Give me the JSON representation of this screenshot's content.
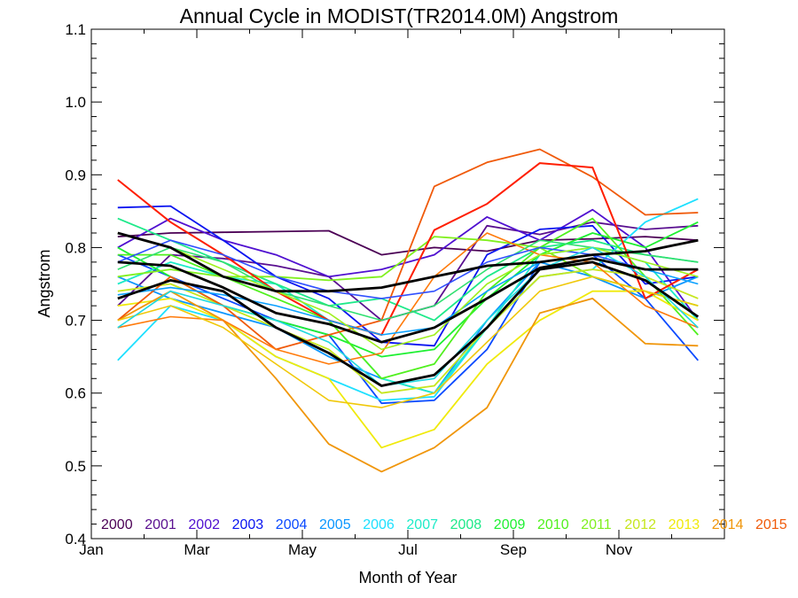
{
  "chart_data": {
    "type": "line",
    "title": "Annual Cycle in MODIST(TR2014.0M) Angstrom",
    "xlabel": "Month of Year",
    "ylabel": "Angstrom",
    "xlim": [
      1,
      13
    ],
    "ylim": [
      0.4,
      1.1
    ],
    "x_ticks": [
      {
        "value": 1,
        "label": "Jan"
      },
      {
        "value": 3,
        "label": "Mar"
      },
      {
        "value": 5,
        "label": "May"
      },
      {
        "value": 7,
        "label": "Jul"
      },
      {
        "value": 9,
        "label": "Sep"
      },
      {
        "value": 11,
        "label": "Nov"
      }
    ],
    "y_ticks": [
      0.4,
      0.5,
      0.6,
      0.7,
      0.8,
      0.9,
      1.0,
      1.1
    ],
    "y_tick_labels": [
      "0.4",
      "0.5",
      "0.6",
      "0.7",
      "0.8",
      "0.9",
      "1.0",
      "1.1"
    ],
    "grid": false,
    "legend_position": "bottom inside plot, single row",
    "x": [
      1.5,
      2.5,
      3.5,
      4.5,
      5.5,
      6.5,
      7.5,
      8.5,
      9.5,
      10.5,
      11.5,
      12.5
    ],
    "series": [
      {
        "name": "2000",
        "color": "#4b0055",
        "values": [
          0.815,
          0.82,
          0.821,
          0.822,
          0.823,
          0.79,
          0.8,
          0.795,
          0.81,
          0.812,
          0.815,
          0.81
        ]
      },
      {
        "name": "2001",
        "color": "#5a1090",
        "values": [
          0.72,
          0.79,
          0.785,
          0.775,
          0.76,
          0.7,
          0.72,
          0.83,
          0.818,
          0.835,
          0.825,
          0.83
        ]
      },
      {
        "name": "2002",
        "color": "#5010d0",
        "values": [
          0.8,
          0.84,
          0.81,
          0.79,
          0.76,
          0.77,
          0.79,
          0.842,
          0.81,
          0.852,
          0.8,
          0.7
        ]
      },
      {
        "name": "2003",
        "color": "#0a14f0",
        "values": [
          0.855,
          0.857,
          0.81,
          0.76,
          0.73,
          0.67,
          0.665,
          0.79,
          0.825,
          0.83,
          0.75,
          0.76
        ]
      },
      {
        "name": "2004",
        "color": "#0a4aff",
        "values": [
          0.79,
          0.76,
          0.73,
          0.7,
          0.68,
          0.586,
          0.59,
          0.66,
          0.78,
          0.79,
          0.73,
          0.645
        ]
      },
      {
        "name": "2005",
        "color": "#0a96ff",
        "values": [
          0.76,
          0.73,
          0.71,
          0.69,
          0.65,
          0.62,
          0.6,
          0.7,
          0.78,
          0.76,
          0.73,
          0.76
        ]
      },
      {
        "name": "2006",
        "color": "#1ee0ff",
        "values": [
          0.645,
          0.72,
          0.7,
          0.65,
          0.62,
          0.59,
          0.595,
          0.69,
          0.76,
          0.77,
          0.835,
          0.867
        ]
      },
      {
        "name": "2007",
        "color": "#1eebc8",
        "values": [
          0.75,
          0.78,
          0.76,
          0.75,
          0.7,
          0.62,
          0.6,
          0.69,
          0.79,
          0.8,
          0.78,
          0.7
        ]
      },
      {
        "name": "2008",
        "color": "#1ee98a",
        "values": [
          0.84,
          0.81,
          0.78,
          0.75,
          0.72,
          0.73,
          0.7,
          0.76,
          0.8,
          0.81,
          0.79,
          0.78
        ]
      },
      {
        "name": "2009",
        "color": "#1ef032",
        "values": [
          0.8,
          0.76,
          0.72,
          0.7,
          0.68,
          0.65,
          0.66,
          0.73,
          0.79,
          0.82,
          0.8,
          0.835
        ]
      },
      {
        "name": "2010",
        "color": "#50f01e",
        "values": [
          0.79,
          0.79,
          0.76,
          0.73,
          0.7,
          0.62,
          0.64,
          0.74,
          0.8,
          0.84,
          0.76,
          0.68
        ]
      },
      {
        "name": "2011",
        "color": "#80f01e",
        "values": [
          0.76,
          0.77,
          0.76,
          0.76,
          0.755,
          0.76,
          0.815,
          0.81,
          0.8,
          0.76,
          0.74,
          0.72
        ]
      },
      {
        "name": "2012",
        "color": "#c6e61e",
        "values": [
          0.74,
          0.75,
          0.72,
          0.69,
          0.66,
          0.6,
          0.61,
          0.69,
          0.76,
          0.77,
          0.76,
          0.73
        ]
      },
      {
        "name": "2013",
        "color": "#f0ea0a",
        "values": [
          0.72,
          0.73,
          0.7,
          0.65,
          0.62,
          0.525,
          0.55,
          0.64,
          0.7,
          0.74,
          0.74,
          0.7
        ]
      },
      {
        "name": "2014",
        "color": "#f0960a",
        "values": [
          0.7,
          0.74,
          0.7,
          0.62,
          0.53,
          0.492,
          0.525,
          0.58,
          0.71,
          0.73,
          0.668,
          0.665
        ]
      },
      {
        "name": "2015",
        "color": "#f05a0a",
        "values": [
          0.7,
          0.76,
          0.72,
          0.66,
          0.68,
          0.7,
          0.884,
          0.917,
          0.935,
          0.897,
          0.845,
          0.848
        ]
      }
    ],
    "extra_lines": [
      {
        "color": "#ff1e00",
        "width": 2.0,
        "values": [
          0.893,
          0.835,
          0.79,
          0.74,
          0.7,
          0.68,
          0.824,
          0.86,
          0.916,
          0.91,
          0.73,
          0.77
        ]
      },
      {
        "color": "#ff7a0a",
        "width": 1.6,
        "values": [
          0.69,
          0.705,
          0.7,
          0.66,
          0.64,
          0.655,
          0.76,
          0.82,
          0.79,
          0.78,
          0.72,
          0.69
        ]
      },
      {
        "color": "#0aa0ff",
        "width": 1.6,
        "values": [
          0.735,
          0.745,
          0.735,
          0.72,
          0.7,
          0.68,
          0.69,
          0.74,
          0.78,
          0.79,
          0.77,
          0.75
        ]
      },
      {
        "color": "#30e070",
        "width": 1.6,
        "values": [
          0.77,
          0.8,
          0.78,
          0.74,
          0.72,
          0.7,
          0.72,
          0.77,
          0.81,
          0.8,
          0.79,
          0.78
        ]
      },
      {
        "color": "#3050ff",
        "width": 1.6,
        "values": [
          0.78,
          0.81,
          0.79,
          0.76,
          0.74,
          0.73,
          0.74,
          0.78,
          0.8,
          0.79,
          0.77,
          0.77
        ]
      },
      {
        "color": "#a0f01e",
        "width": 1.6,
        "values": [
          0.82,
          0.8,
          0.77,
          0.74,
          0.71,
          0.66,
          0.68,
          0.75,
          0.79,
          0.8,
          0.78,
          0.76
        ]
      },
      {
        "color": "#f0c80a",
        "width": 1.6,
        "values": [
          0.7,
          0.72,
          0.69,
          0.64,
          0.59,
          0.58,
          0.6,
          0.67,
          0.74,
          0.76,
          0.74,
          0.72
        ]
      },
      {
        "color": "#20d8e0",
        "width": 1.6,
        "values": [
          0.69,
          0.74,
          0.72,
          0.7,
          0.67,
          0.61,
          0.62,
          0.7,
          0.77,
          0.8,
          0.76,
          0.69
        ]
      },
      {
        "color": "#000000",
        "width": 2.8,
        "values": [
          0.82,
          0.8,
          0.76,
          0.74,
          0.74,
          0.745,
          0.76,
          0.775,
          0.78,
          0.79,
          0.795,
          0.81
        ]
      },
      {
        "color": "#000000",
        "width": 2.8,
        "values": [
          0.78,
          0.775,
          0.745,
          0.71,
          0.695,
          0.67,
          0.69,
          0.73,
          0.772,
          0.785,
          0.77,
          0.77
        ]
      },
      {
        "color": "#000000",
        "width": 2.8,
        "values": [
          0.73,
          0.755,
          0.74,
          0.69,
          0.655,
          0.61,
          0.625,
          0.69,
          0.77,
          0.78,
          0.755,
          0.705
        ]
      }
    ]
  }
}
